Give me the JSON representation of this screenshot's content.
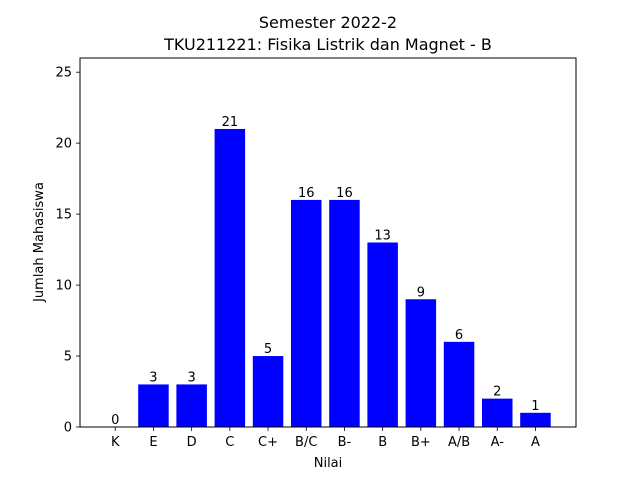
{
  "chart_data": {
    "type": "bar",
    "title_line1": "Semester 2022-2",
    "title_line2": "TKU211221: Fisika Listrik dan Magnet - B",
    "xlabel": "Nilai",
    "ylabel": "Jumlah Mahasiswa",
    "categories": [
      "K",
      "E",
      "D",
      "C",
      "C+",
      "B/C",
      "B-",
      "B",
      "B+",
      "A/B",
      "A-",
      "A"
    ],
    "values": [
      0,
      3,
      3,
      21,
      5,
      16,
      16,
      13,
      9,
      6,
      2,
      1
    ],
    "ylim": [
      0,
      26
    ],
    "yticks": [
      0,
      5,
      10,
      15,
      20,
      25
    ],
    "bar_color": "#0000ff",
    "grid": false
  }
}
